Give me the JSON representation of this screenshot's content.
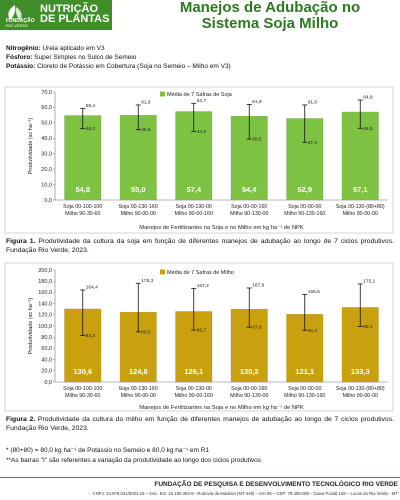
{
  "header": {
    "banner": [
      "NUTRIÇÃO",
      "DE PLANTAS"
    ],
    "logo_name": "FUNDAÇÃO",
    "logo_sub": "RIO VERDE",
    "title_lines": [
      "Manejos de Adubação no",
      "Sistema Soja Milho"
    ]
  },
  "info": [
    {
      "label": "Nitrogênio:",
      "text": " Ureia aplicado em V3"
    },
    {
      "label": "Fósforo:",
      "text": " Super Simples no Sulco de Semeio"
    },
    {
      "label": "Potássio:",
      "text": " Cloreto de Potássio em Cobertura (Soja no Semeio – Milho em V3)"
    }
  ],
  "captions": {
    "fig1_label": "Figura 1.",
    "fig1_text": " Produtividade da cultura da soja em função de diferentes manejos de adubação ao longo de 7 ciclos produtivos. Fundação Rio Verde, 2023.",
    "fig2_label": "Figura 2.",
    "fig2_text": " Produtividade da cultura do milho em função de diferentes manejos de adubação ao longo de 7 ciclos produtivos. Fundação Rio Verde, 2023."
  },
  "notes": [
    "* (80+80) = 80,0 kg ha⁻¹ de Potássio no Semeio e 80,0 kg ha⁻¹ em R1",
    "**As barras \"I\" são referentes a variação da produtividade ao longo dos ciclos produtivos"
  ],
  "footer": {
    "name": "FUNDAÇÃO DE PESQUISA E DESENVOLVIMENTO TECNOLÓGICO RIO VERDE",
    "contact": "CNPJ: 24.979.041/0001-15 – Insc. Est. 15.180.363-8 - Rodovia da Madeira (MT-449) – Km 08 – CEP: 78.455-000 - Caixa Postal 159 – Lucas do Rio Verde - MT"
  },
  "colors": {
    "brand_green": "#3f8e2a",
    "soy_bar": "#7dc242",
    "corn_bar": "#c9a00d"
  },
  "chart_data": [
    {
      "type": "bar",
      "title": "",
      "legend": "Média de 7 Safras de Soja",
      "xlabel": "Manejos de Fertilizantes na Soja e no Milho em kg ha⁻¹ de NPK",
      "ylabel": "Produtividade (sc ha⁻¹)",
      "ylim": [
        0,
        70
      ],
      "yticks": [
        "0,0",
        "10,0",
        "20,0",
        "30,0",
        "40,0",
        "50,0",
        "60,0",
        "70,0"
      ],
      "categories": [
        [
          "Soja 00-100-100",
          "Milho 90-30-60"
        ],
        [
          "Soja 00-130-160",
          "Milho 90-00-00"
        ],
        [
          "Soja 00-130-00",
          "Milho 90-00-160"
        ],
        [
          "Soja 00-00-160",
          "Milho 90-130-00"
        ],
        [
          "Soja 00-00-00",
          "Milho 90-130-160"
        ],
        [
          "Soja 00-130-(80+80)",
          "Milho 90-00-00"
        ]
      ],
      "values": [
        54.8,
        55.0,
        57.4,
        54.4,
        52.9,
        57.1
      ],
      "value_labels": [
        "54,8",
        "55,0",
        "57,4",
        "54,4",
        "52,9",
        "57,1"
      ],
      "err_high": [
        59.4,
        61.6,
        62.7,
        61.9,
        61.6,
        64.8
      ],
      "err_high_labels": [
        "59,4",
        "61,6",
        "62,7",
        "61,9",
        "61,6",
        "64,8"
      ],
      "err_low": [
        46.2,
        45.6,
        44.5,
        39.5,
        37.4,
        46.5
      ],
      "err_low_labels": [
        "46,2",
        "45,6",
        "44,5",
        "39,5",
        "37,4",
        "46,5"
      ]
    },
    {
      "type": "bar",
      "title": "",
      "legend": "Média de 7 Safras de Milho",
      "xlabel": "Manejos de Fertilizantes na Soja e no Milho em kg ha⁻¹ de NPK",
      "ylabel": "Produtividade (sc ha⁻¹)",
      "ylim": [
        0,
        200
      ],
      "yticks": [
        "0,0",
        "20,0",
        "40,0",
        "60,0",
        "80,0",
        "100,0",
        "120,0",
        "140,0",
        "160,0",
        "180,0",
        "200,0"
      ],
      "categories": [
        [
          "Soja 00-100-100",
          "Milho 90-30-60"
        ],
        [
          "Soja 00-130-160",
          "Milho 90-00-00"
        ],
        [
          "Soja 00-130-00",
          "Milho 90-00-160"
        ],
        [
          "Soja 00-00-160",
          "Milho 90-130-00"
        ],
        [
          "Soja 00-00-00",
          "Milho 90-130-160"
        ],
        [
          "Soja 00-130-(80+80)",
          "Milho 90-00-00"
        ]
      ],
      "values": [
        130.6,
        124.8,
        126.1,
        130.2,
        121.1,
        133.3
      ],
      "value_labels": [
        "130,6",
        "124,8",
        "126,1",
        "130,2",
        "121,1",
        "133,3"
      ],
      "err_high": [
        164.4,
        176.3,
        167.2,
        167.9,
        156.5,
        175.1
      ],
      "err_high_labels": [
        "164,4",
        "176,3",
        "167,2",
        "167,9",
        "156,5",
        "175,1"
      ],
      "err_low": [
        83.2,
        89.5,
        92.7,
        97.9,
        92.4,
        99.1
      ],
      "err_low_labels": [
        "83,2",
        "89,5",
        "92,7",
        "97,9",
        "92,4",
        "99,1"
      ]
    }
  ]
}
